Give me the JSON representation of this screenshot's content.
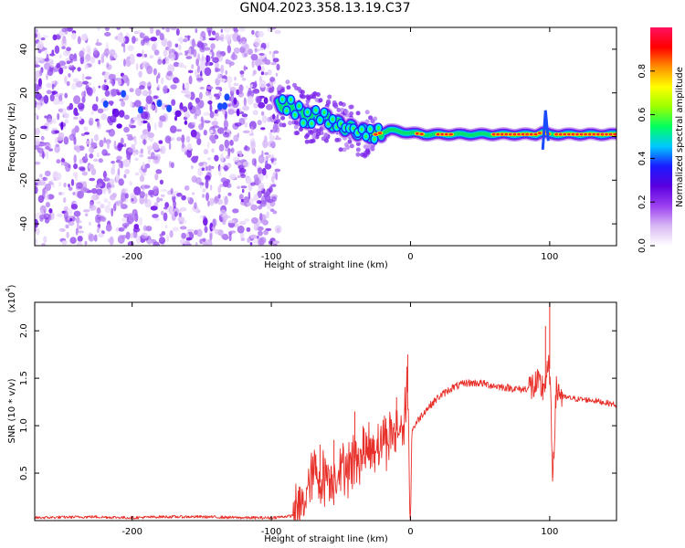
{
  "title": "GN04.2023.358.13.19.C37",
  "colors": {
    "snr_line": "#e8302a",
    "axis": "#000000"
  },
  "chart_data": [
    {
      "type": "heatmap",
      "xlabel": "Height of straight line (km)",
      "ylabel": "Frequency (Hz)",
      "xlim": [
        -270,
        148
      ],
      "ylim": [
        -50,
        50
      ],
      "x_ticks": [
        -200,
        -100,
        0,
        100
      ],
      "y_ticks": [
        -40,
        -20,
        0,
        20,
        40
      ],
      "colorbar": {
        "label": "Normalized spectral amplitude",
        "range": [
          0,
          1
        ],
        "ticks": [
          "0.0",
          "0.2",
          "0.4",
          "0.6",
          "0.8"
        ],
        "colormap": [
          "#ffffff",
          "#d8b8f4",
          "#9b40f0",
          "#5a00e0",
          "#1a1aff",
          "#00c8ff",
          "#00ff60",
          "#9cff00",
          "#ffff00",
          "#ff9000",
          "#ff0000",
          "#ff1060"
        ]
      },
      "noise_region": {
        "x": [
          -270,
          -95
        ],
        "y": [
          -50,
          50
        ]
      },
      "ridge": [
        {
          "x": -95,
          "y": 15
        },
        {
          "x": -85,
          "y": 14
        },
        {
          "x": -75,
          "y": 8
        },
        {
          "x": -65,
          "y": 10
        },
        {
          "x": -55,
          "y": 6
        },
        {
          "x": -45,
          "y": 4
        },
        {
          "x": -35,
          "y": 2
        },
        {
          "x": -25,
          "y": 1
        },
        {
          "x": -15,
          "y": 3
        },
        {
          "x": -5,
          "y": 2
        },
        {
          "x": 10,
          "y": 1
        },
        {
          "x": 30,
          "y": 1
        },
        {
          "x": 60,
          "y": 1
        },
        {
          "x": 90,
          "y": 1
        },
        {
          "x": 95,
          "y": 2
        },
        {
          "x": 100,
          "y": 1
        },
        {
          "x": 148,
          "y": 1
        }
      ],
      "peak_segments": [
        [
          -25,
          -20
        ],
        [
          5,
          10
        ],
        [
          20,
          30
        ],
        [
          60,
          100
        ],
        [
          105,
          148
        ]
      ]
    },
    {
      "type": "line",
      "xlabel": "Height of straight line (km)",
      "ylabel": "SNR (10 * v/v)",
      "y_multiplier": "(x10^4)",
      "xlim": [
        -270,
        148
      ],
      "ylim": [
        0,
        2.3
      ],
      "x_ticks": [
        -200,
        -100,
        0,
        100
      ],
      "y_ticks": [
        "0.5",
        "1.0",
        "1.5",
        "2.0"
      ],
      "series": [
        {
          "x": [
            -270,
            -230,
            -200,
            -180,
            -150,
            -120,
            -100,
            -85,
            -75,
            -70,
            -65,
            -60,
            -55,
            -50,
            -45,
            -40,
            -35,
            -30,
            -25,
            -20,
            -15,
            -10,
            -5,
            -2,
            0,
            1,
            5,
            10,
            20,
            30,
            40,
            50,
            60,
            70,
            80,
            90,
            95,
            100,
            102,
            105,
            110,
            120,
            130,
            148
          ],
          "y": [
            0.03,
            0.04,
            0.03,
            0.04,
            0.04,
            0.03,
            0.03,
            0.05,
            0.25,
            0.55,
            0.4,
            0.5,
            0.45,
            0.55,
            0.6,
            0.65,
            0.7,
            0.75,
            0.8,
            0.85,
            0.9,
            0.95,
            1.0,
            1.35,
            0.0,
            0.95,
            1.05,
            1.15,
            1.3,
            1.4,
            1.45,
            1.45,
            1.42,
            1.4,
            1.38,
            1.42,
            1.4,
            1.6,
            0.5,
            1.4,
            1.3,
            1.28,
            1.27,
            1.22
          ],
          "spikes": [
            {
              "x": -2,
              "y": 1.75
            },
            {
              "x": 0,
              "y": 0.0
            },
            {
              "x": -10,
              "y": 1.3
            },
            {
              "x": -55,
              "y": 0.85
            },
            {
              "x": -65,
              "y": 0.8
            },
            {
              "x": -40,
              "y": 1.15
            },
            {
              "x": 100,
              "y": 2.3
            },
            {
              "x": 102,
              "y": 0.45
            },
            {
              "x": 97,
              "y": 2.05
            }
          ]
        }
      ]
    }
  ]
}
